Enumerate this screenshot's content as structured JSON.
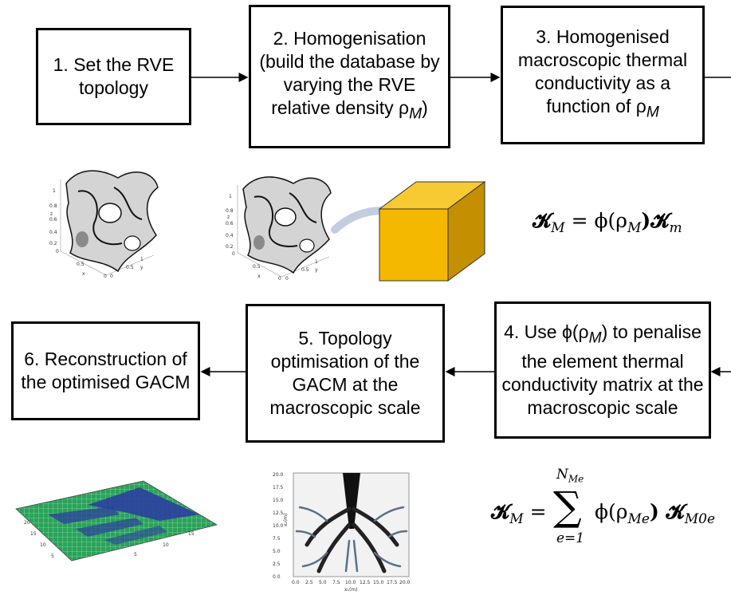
{
  "steps": {
    "s1": "1. Set the RVE topology",
    "s2": "2. Homogenisation (build the database by varying the RVE relative density ρ",
    "s2_sub": "M",
    "s2_end": ")",
    "s3": "3. Homogenised macroscopic thermal conductivity as a function of ρ",
    "s3_sub": "M",
    "s4_a": "4. Use ϕ(ρ",
    "s4_sub": "M",
    "s4_b": ") to penalise the element thermal conductivity matrix at the macroscopic scale",
    "s5": "5. Topology optimisation of the GACM at the macroscopic scale",
    "s6": "6. Reconstruction of the optimised GACM"
  },
  "formulas": {
    "f1_lhs": "𝓚",
    "f1_lhs_sub": "M",
    "f1_rhs": " = ϕ(ρ",
    "f1_rhs_sub": "M",
    "f1_rhs_end": ")𝓚",
    "f1_rhs_end_sub": "m",
    "f2_lhs": "𝓚",
    "f2_lhs_sub": "M",
    "f2_eq": " = ",
    "f2_sum": "∑",
    "f2_upper": "N",
    "f2_upper_sub": "Me",
    "f2_lower": "e=1",
    "f2_term": "ϕ(ρ",
    "f2_term_sub": "Me",
    "f2_term_end": ") 𝓚",
    "f2_term_end_sub": "M0e"
  },
  "figures": {
    "rve_ticks": [
      "1",
      "0.8",
      "0.6",
      "0.4",
      "0.2",
      "0",
      "0.5",
      "1",
      "0.5",
      "0",
      "0"
    ],
    "rve_axis": [
      "x",
      "y",
      "z"
    ],
    "map_ticks": [
      "20",
      "15",
      "10",
      "5",
      "5",
      "10",
      "15"
    ],
    "density_ticks_x": [
      "0.0",
      "2.5",
      "5.0",
      "7.5",
      "10.0",
      "12.5",
      "15.0",
      "17.5",
      "20.0"
    ],
    "density_ticks_y": [
      "20.0",
      "17.5",
      "15.0",
      "12.5",
      "10.0",
      "7.5",
      "5.0",
      "2.5",
      "0.0"
    ],
    "density_xlabel": "x₁(m)",
    "density_ylabel": "x₂(m)"
  },
  "colors": {
    "cube": "#f5b800",
    "cube_side": "#c48f00",
    "map_green": "#2aa35a",
    "map_blue": "#2b3f9e"
  }
}
